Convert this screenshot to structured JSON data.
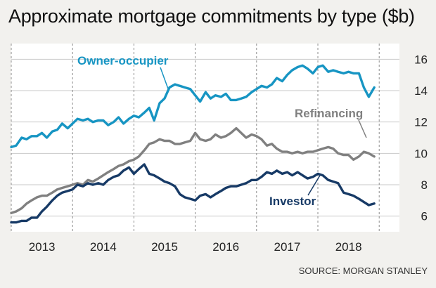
{
  "title": "Approximate mortgage commitments by type ($b)",
  "source": "SOURCE: MORGAN STANLEY",
  "chart_data": {
    "type": "line",
    "title": "Approximate mortgage commitments by type ($b)",
    "xlabel": "",
    "ylabel": "",
    "x_ticks": [
      "2013",
      "2014",
      "2015",
      "2016",
      "2017",
      "2018"
    ],
    "y_ticks": [
      6,
      8,
      10,
      12,
      14,
      16
    ],
    "ylim": [
      5,
      17
    ],
    "xlim": [
      2012.5,
      2018.83
    ],
    "grid": true,
    "x": [
      2012.5,
      2012.58,
      2012.67,
      2012.75,
      2012.83,
      2012.92,
      2013.0,
      2013.08,
      2013.17,
      2013.25,
      2013.33,
      2013.42,
      2013.5,
      2013.58,
      2013.67,
      2013.75,
      2013.83,
      2013.92,
      2014.0,
      2014.08,
      2014.17,
      2014.25,
      2014.33,
      2014.42,
      2014.5,
      2014.58,
      2014.67,
      2014.75,
      2014.83,
      2014.92,
      2015.0,
      2015.08,
      2015.17,
      2015.25,
      2015.33,
      2015.42,
      2015.5,
      2015.58,
      2015.67,
      2015.75,
      2015.83,
      2015.92,
      2016.0,
      2016.08,
      2016.17,
      2016.25,
      2016.33,
      2016.42,
      2016.5,
      2016.58,
      2016.67,
      2016.75,
      2016.83,
      2016.92,
      2017.0,
      2017.08,
      2017.17,
      2017.25,
      2017.33,
      2017.42,
      2017.5,
      2017.58,
      2017.67,
      2017.75,
      2017.83,
      2017.92,
      2018.0,
      2018.08,
      2018.17,
      2018.25,
      2018.33,
      2018.42
    ],
    "series": [
      {
        "name": "Owner-occupier",
        "color": "#1795c3",
        "values": [
          10.4,
          10.5,
          11.0,
          10.9,
          11.1,
          11.1,
          11.3,
          11.0,
          11.4,
          11.5,
          11.9,
          11.6,
          11.9,
          12.2,
          12.1,
          12.2,
          12.0,
          12.1,
          12.1,
          11.8,
          12.0,
          12.3,
          11.9,
          12.2,
          12.4,
          12.3,
          12.6,
          12.9,
          12.1,
          13.2,
          13.5,
          14.2,
          14.4,
          14.3,
          14.2,
          14.1,
          13.7,
          13.3,
          13.9,
          13.5,
          13.7,
          13.6,
          13.8,
          13.4,
          13.4,
          13.5,
          13.6,
          13.9,
          14.1,
          14.3,
          14.2,
          14.4,
          14.8,
          14.6,
          15.0,
          15.3,
          15.5,
          15.6,
          15.4,
          15.1,
          15.5,
          15.6,
          15.2,
          15.3,
          15.2,
          15.1,
          15.2,
          15.1,
          15.1,
          14.2,
          13.6,
          14.2
        ]
      },
      {
        "name": "Refinancing",
        "color": "#808080",
        "values": [
          6.2,
          6.3,
          6.5,
          6.8,
          7.0,
          7.2,
          7.3,
          7.3,
          7.5,
          7.7,
          7.8,
          7.9,
          8.0,
          8.1,
          8.0,
          8.3,
          8.2,
          8.4,
          8.6,
          8.8,
          9.0,
          9.2,
          9.3,
          9.5,
          9.6,
          9.8,
          10.2,
          10.6,
          10.7,
          10.9,
          10.8,
          10.8,
          10.6,
          10.6,
          10.7,
          10.8,
          11.3,
          10.9,
          10.8,
          10.9,
          11.2,
          11.0,
          11.1,
          11.3,
          11.6,
          11.3,
          11.0,
          11.2,
          11.1,
          10.9,
          10.5,
          10.6,
          10.3,
          10.1,
          10.1,
          10.0,
          10.1,
          10.0,
          10.1,
          10.1,
          10.2,
          10.3,
          10.4,
          10.3,
          10.0,
          9.9,
          9.9,
          9.6,
          9.8,
          10.1,
          10.0,
          9.8
        ]
      },
      {
        "name": "Investor",
        "color": "#173a66",
        "values": [
          5.6,
          5.6,
          5.7,
          5.7,
          5.9,
          5.9,
          6.3,
          6.6,
          7.0,
          7.3,
          7.5,
          7.6,
          7.7,
          8.0,
          7.9,
          8.1,
          8.0,
          8.1,
          8.0,
          8.3,
          8.5,
          8.6,
          8.9,
          9.1,
          8.7,
          9.0,
          9.3,
          8.7,
          8.6,
          8.4,
          8.2,
          8.1,
          7.9,
          7.4,
          7.2,
          7.1,
          7.0,
          7.3,
          7.4,
          7.2,
          7.4,
          7.6,
          7.8,
          7.9,
          7.9,
          8.0,
          8.1,
          8.3,
          8.3,
          8.5,
          8.8,
          8.7,
          8.9,
          8.7,
          8.8,
          8.6,
          8.8,
          8.6,
          8.4,
          8.5,
          8.7,
          8.6,
          8.3,
          8.2,
          8.1,
          7.5,
          7.4,
          7.3,
          7.1,
          6.9,
          6.7,
          6.8
        ]
      }
    ]
  }
}
